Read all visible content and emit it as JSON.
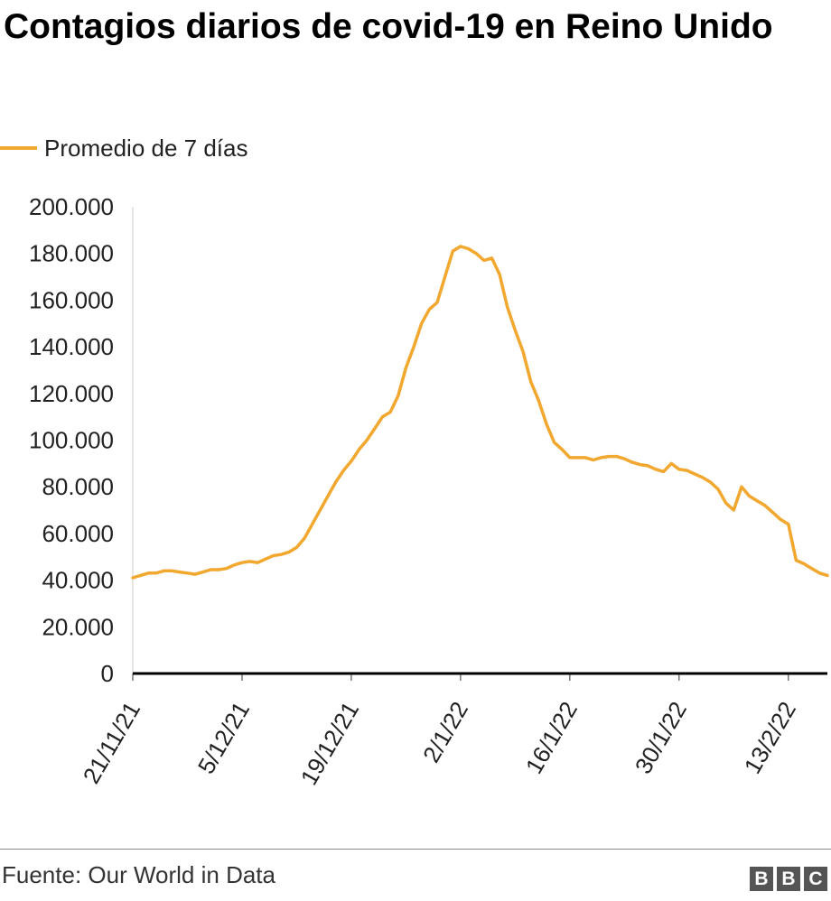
{
  "chart_data": {
    "type": "line",
    "title": "Contagios diarios de covid-19 en Reino Unido",
    "xlabel": "",
    "ylabel": "",
    "legend": "top-left",
    "grid": false,
    "ylim": [
      0,
      200000
    ],
    "y_ticks": [
      0,
      20000,
      40000,
      60000,
      80000,
      100000,
      120000,
      140000,
      160000,
      180000,
      200000
    ],
    "y_tick_labels": [
      "0",
      "20.000",
      "40.000",
      "60.000",
      "80.000",
      "100.000",
      "120.000",
      "140.000",
      "160.000",
      "180.000",
      "200.000"
    ],
    "x_range": [
      "2021-11-21",
      "2022-02-18"
    ],
    "x_ticks": [
      "2021-11-21",
      "2021-12-05",
      "2021-12-19",
      "2022-01-02",
      "2022-01-16",
      "2022-01-30",
      "2022-02-13"
    ],
    "x_tick_labels": [
      "21/11/21",
      "5/12/21",
      "19/12/21",
      "2/1/22",
      "16/1/22",
      "30/1/22",
      "13/2/22"
    ],
    "series": [
      {
        "name": "Promedio de 7 días",
        "color": "#f2a72e",
        "x": [
          "2021-11-21",
          "2021-11-22",
          "2021-11-23",
          "2021-11-24",
          "2021-11-25",
          "2021-11-26",
          "2021-11-27",
          "2021-11-28",
          "2021-11-29",
          "2021-11-30",
          "2021-12-01",
          "2021-12-02",
          "2021-12-03",
          "2021-12-04",
          "2021-12-05",
          "2021-12-06",
          "2021-12-07",
          "2021-12-08",
          "2021-12-09",
          "2021-12-10",
          "2021-12-11",
          "2021-12-12",
          "2021-12-13",
          "2021-12-14",
          "2021-12-15",
          "2021-12-16",
          "2021-12-17",
          "2021-12-18",
          "2021-12-19",
          "2021-12-20",
          "2021-12-21",
          "2021-12-22",
          "2021-12-23",
          "2021-12-24",
          "2021-12-25",
          "2021-12-26",
          "2021-12-27",
          "2021-12-28",
          "2021-12-29",
          "2021-12-30",
          "2021-12-31",
          "2022-01-01",
          "2022-01-02",
          "2022-01-03",
          "2022-01-04",
          "2022-01-05",
          "2022-01-06",
          "2022-01-07",
          "2022-01-08",
          "2022-01-09",
          "2022-01-10",
          "2022-01-11",
          "2022-01-12",
          "2022-01-13",
          "2022-01-14",
          "2022-01-15",
          "2022-01-16",
          "2022-01-17",
          "2022-01-18",
          "2022-01-19",
          "2022-01-20",
          "2022-01-21",
          "2022-01-22",
          "2022-01-23",
          "2022-01-24",
          "2022-01-25",
          "2022-01-26",
          "2022-01-27",
          "2022-01-28",
          "2022-01-29",
          "2022-01-30",
          "2022-01-31",
          "2022-02-01",
          "2022-02-02",
          "2022-02-03",
          "2022-02-04",
          "2022-02-05",
          "2022-02-06",
          "2022-02-07",
          "2022-02-08",
          "2022-02-09",
          "2022-02-10",
          "2022-02-11",
          "2022-02-12",
          "2022-02-13",
          "2022-02-14",
          "2022-02-15",
          "2022-02-16",
          "2022-02-17",
          "2022-02-18"
        ],
        "y": [
          41000,
          42000,
          43000,
          43000,
          44000,
          44000,
          43500,
          43000,
          42500,
          43500,
          44500,
          44500,
          45000,
          46500,
          47500,
          48000,
          47500,
          49000,
          50500,
          51000,
          52000,
          54000,
          58000,
          64000,
          70000,
          76000,
          82000,
          87000,
          91000,
          96000,
          100000,
          105000,
          110000,
          112000,
          119000,
          131000,
          140000,
          150000,
          156000,
          159000,
          170000,
          181000,
          183000,
          182000,
          180000,
          177000,
          178000,
          171000,
          157000,
          147000,
          138000,
          125000,
          117000,
          107000,
          99000,
          96000,
          92500,
          92500,
          92500,
          91500,
          92500,
          93000,
          93000,
          92000,
          90500,
          89500,
          89000,
          87500,
          86500,
          90000,
          87500,
          87000,
          85500,
          84000,
          82000,
          79000,
          73000,
          70000,
          80000,
          76000,
          74000,
          72000,
          69000,
          66000,
          64000,
          48500,
          47000,
          45000,
          43000,
          42000
        ]
      }
    ]
  },
  "source": "Fuente: Our World in Data",
  "logo": {
    "letters": [
      "B",
      "B",
      "C"
    ]
  }
}
